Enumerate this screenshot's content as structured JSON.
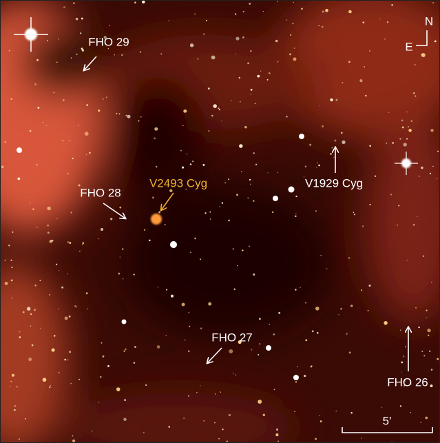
{
  "labels": {
    "fho29": "FHO 29",
    "fho28": "FHO 28",
    "v2493": "V2493 Cyg",
    "v1929": "V1929 Cyg",
    "fho27": "FHO 27",
    "fho26": "FHO 26"
  },
  "compass": {
    "north": "N",
    "east": "E"
  },
  "scale": {
    "label": "5′"
  }
}
